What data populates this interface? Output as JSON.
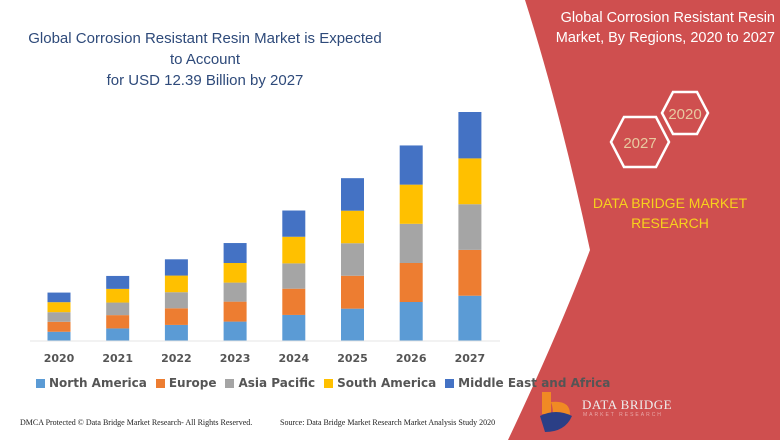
{
  "header": {
    "title_line1": "Global Corrosion Resistant Resin Market is Expected to Account",
    "title_line2": "for USD 12.39 Billion by 2027"
  },
  "side_panel": {
    "title_line1": "Global Corrosion Resistant Resin",
    "title_line2": "Market, By Regions, 2020 to 2027",
    "hex_2020": "2020",
    "hex_2027": "2027",
    "brand_line1": "DATA BRIDGE MARKET",
    "brand_line2": "RESEARCH",
    "panel_color": "#cf4f4f",
    "brand_color": "#f7d21c"
  },
  "chart_data": {
    "type": "bar",
    "stacked": true,
    "title": "Global Corrosion Resistant Resin Market is Expected to Account for USD 12.39 Billion by 2027",
    "xlabel": "",
    "ylabel": "",
    "grid": false,
    "legend_position": "bottom",
    "categories": [
      "2020",
      "2021",
      "2022",
      "2023",
      "2024",
      "2025",
      "2026",
      "2027"
    ],
    "series": [
      {
        "name": "North America",
        "color": "#5b9bd5",
        "values": [
          0.5,
          0.68,
          0.87,
          1.05,
          1.41,
          1.75,
          2.11,
          2.45
        ]
      },
      {
        "name": "Europe",
        "color": "#ed7d31",
        "values": [
          0.54,
          0.72,
          0.9,
          1.08,
          1.42,
          1.78,
          2.11,
          2.48
        ]
      },
      {
        "name": "Asia Pacific",
        "color": "#a5a5a5",
        "values": [
          0.52,
          0.68,
          0.87,
          1.03,
          1.37,
          1.76,
          2.12,
          2.47
        ]
      },
      {
        "name": "South America",
        "color": "#ffc000",
        "values": [
          0.54,
          0.74,
          0.9,
          1.06,
          1.44,
          1.76,
          2.12,
          2.48
        ]
      },
      {
        "name": "Middle East and Africa",
        "color": "#4472c4",
        "values": [
          0.52,
          0.7,
          0.88,
          1.08,
          1.42,
          1.76,
          2.12,
          2.51
        ]
      }
    ]
  },
  "footer": {
    "dmca": "DMCA Protected © Data Bridge Market Research- All Rights Reserved.",
    "source": "Source: Data Bridge Market Research Market Analysis Study 2020",
    "logo_text": "DATA BRIDGE",
    "logo_sub": "MARKET RESEARCH"
  }
}
